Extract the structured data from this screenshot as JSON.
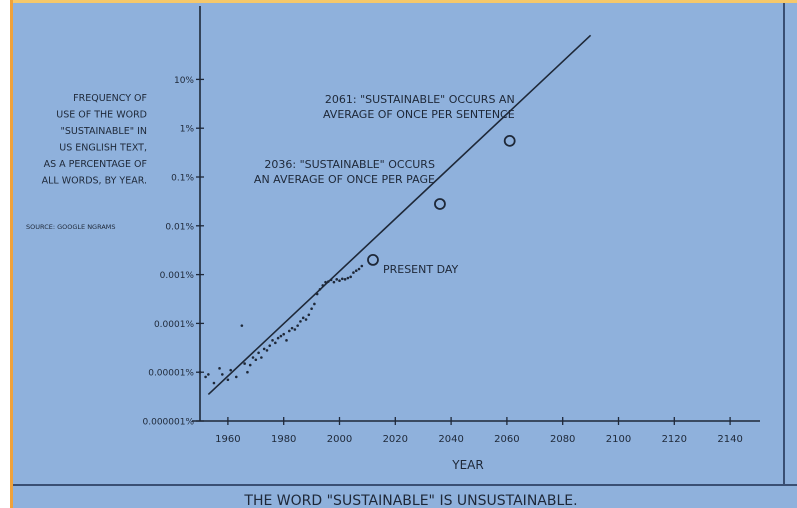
{
  "chart_data": {
    "type": "scatter",
    "y_scale": "log",
    "xlabel": "YEAR",
    "ylabel_lines": [
      "FREQUENCY OF",
      "USE OF THE WORD",
      "\"SUSTAINABLE\" IN",
      "US ENGLISH TEXT,",
      "AS A PERCENTAGE OF",
      "ALL WORDS, BY YEAR."
    ],
    "source": "SOURCE: GOOGLE NGRAMS",
    "caption": "THE WORD \"SUSTAINABLE\" IS UNSUSTAINABLE.",
    "xlim": [
      1950,
      2150
    ],
    "ylim_percent": [
      1e-06,
      0.1
    ],
    "x_ticks": [
      1960,
      1980,
      2000,
      2020,
      2040,
      2060,
      2080,
      2100,
      2120,
      2140
    ],
    "y_ticks": [
      {
        "value": 1e-06,
        "label": "0.000001%"
      },
      {
        "value": 1e-05,
        "label": "0.00001%"
      },
      {
        "value": 0.0001,
        "label": "0.0001%"
      },
      {
        "value": 0.001,
        "label": "0.001%"
      },
      {
        "value": 0.01,
        "label": "0.01%"
      },
      {
        "value": 0.1,
        "label": "0.1%"
      },
      {
        "value": 1,
        "label": "1%"
      },
      {
        "value": 10,
        "label": "10%"
      }
    ],
    "trend_line": {
      "x": [
        1953,
        2090
      ],
      "y": [
        3.5e-06,
        80
      ]
    },
    "points": [
      {
        "x": 1950,
        "y": 1e-05
      },
      {
        "x": 1952,
        "y": 8e-06
      },
      {
        "x": 1953,
        "y": 9e-06
      },
      {
        "x": 1955,
        "y": 6e-06
      },
      {
        "x": 1957,
        "y": 1.2e-05
      },
      {
        "x": 1958,
        "y": 9e-06
      },
      {
        "x": 1960,
        "y": 7e-06
      },
      {
        "x": 1961,
        "y": 1.1e-05
      },
      {
        "x": 1963,
        "y": 8e-06
      },
      {
        "x": 1965,
        "y": 9e-05
      },
      {
        "x": 1966,
        "y": 1.5e-05
      },
      {
        "x": 1967,
        "y": 1e-05
      },
      {
        "x": 1968,
        "y": 1.4e-05
      },
      {
        "x": 1969,
        "y": 2e-05
      },
      {
        "x": 1970,
        "y": 1.8e-05
      },
      {
        "x": 1971,
        "y": 2.5e-05
      },
      {
        "x": 1972,
        "y": 2e-05
      },
      {
        "x": 1973,
        "y": 3e-05
      },
      {
        "x": 1974,
        "y": 2.8e-05
      },
      {
        "x": 1975,
        "y": 3.5e-05
      },
      {
        "x": 1976,
        "y": 4.5e-05
      },
      {
        "x": 1977,
        "y": 4e-05
      },
      {
        "x": 1978,
        "y": 5e-05
      },
      {
        "x": 1979,
        "y": 5.5e-05
      },
      {
        "x": 1980,
        "y": 6e-05
      },
      {
        "x": 1981,
        "y": 4.5e-05
      },
      {
        "x": 1982,
        "y": 7e-05
      },
      {
        "x": 1983,
        "y": 8e-05
      },
      {
        "x": 1984,
        "y": 7.5e-05
      },
      {
        "x": 1985,
        "y": 9e-05
      },
      {
        "x": 1986,
        "y": 0.00011
      },
      {
        "x": 1987,
        "y": 0.00013
      },
      {
        "x": 1988,
        "y": 0.00012
      },
      {
        "x": 1989,
        "y": 0.00015
      },
      {
        "x": 1990,
        "y": 0.0002
      },
      {
        "x": 1991,
        "y": 0.00025
      },
      {
        "x": 1992,
        "y": 0.0004
      },
      {
        "x": 1993,
        "y": 0.0005
      },
      {
        "x": 1994,
        "y": 0.0006
      },
      {
        "x": 1995,
        "y": 0.0007
      },
      {
        "x": 1996,
        "y": 0.00072
      },
      {
        "x": 1997,
        "y": 0.00078
      },
      {
        "x": 1998,
        "y": 0.0007
      },
      {
        "x": 1999,
        "y": 0.0008
      },
      {
        "x": 2000,
        "y": 0.00075
      },
      {
        "x": 2001,
        "y": 0.00082
      },
      {
        "x": 2002,
        "y": 0.0008
      },
      {
        "x": 2003,
        "y": 0.00085
      },
      {
        "x": 2004,
        "y": 0.0009
      },
      {
        "x": 2005,
        "y": 0.0011
      },
      {
        "x": 2006,
        "y": 0.0012
      },
      {
        "x": 2007,
        "y": 0.0013
      },
      {
        "x": 2008,
        "y": 0.0015
      }
    ],
    "annotations": [
      {
        "x": 2012,
        "y": 0.002,
        "label_lines": [
          "PRESENT DAY"
        ]
      },
      {
        "x": 2036,
        "y": 0.028,
        "label_lines": [
          "2036: \"SUSTAINABLE\" OCCURS",
          "AN AVERAGE OF ONCE PER PAGE"
        ]
      },
      {
        "x": 2061,
        "y": 0.55,
        "label_lines": [
          "2061: \"SUSTAINABLE\" OCCURS AN",
          "AVERAGE OF ONCE PER SENTENCE"
        ]
      }
    ],
    "colors": {
      "background": "#8fb1dc",
      "ink": "#1e2838",
      "frame_left": "#f0a23a",
      "frame_top": "#f6c86a"
    }
  }
}
